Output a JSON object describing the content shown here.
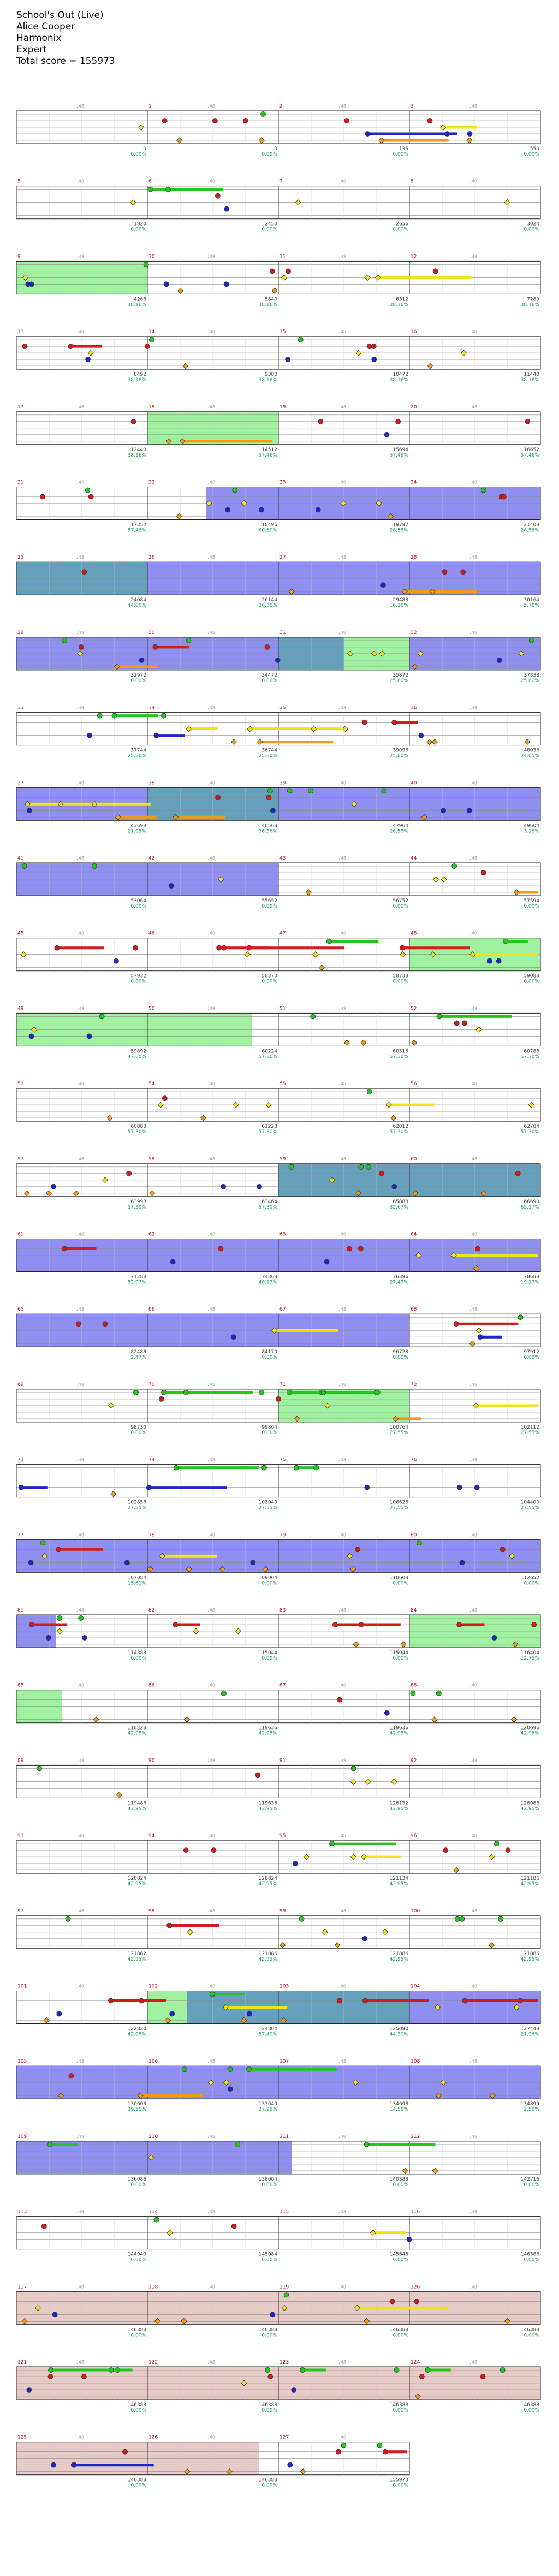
{
  "header": {
    "song": "School's Out (Live)",
    "artist": "Alice Cooper",
    "charter": "Harmonix",
    "difficulty": "Expert",
    "total_score": "Total score = 155973"
  },
  "colors": {
    "green": "#22c61f",
    "red": "#d31b1b",
    "yellow": "#f1e31a",
    "blue": "#1c26c9",
    "orange": "#f39a10",
    "overdrive_fill": "#7b7bf0",
    "solo_fill": "#8ff08f",
    "overlap_fill": "#4a8fb0",
    "coda_fill": "#e2c2bd",
    "score_color": "#1aa35a",
    "measure_color": "#c0101a"
  },
  "rows": [
    {
      "m": [
        null,
        1,
        2,
        3
      ],
      "s": [
        "0",
        "0",
        "136",
        "550"
      ],
      "p": [
        "0.00%",
        "0.00%",
        "0.00%",
        "0.00%"
      ]
    },
    {
      "m": [
        5,
        6,
        7,
        8
      ],
      "s": [
        "1820",
        "2450",
        "2656",
        "3024"
      ],
      "p": [
        "0.00%",
        "0.00%",
        "0.00%",
        "0.00%"
      ]
    },
    {
      "m": [
        9,
        10,
        11,
        12
      ],
      "s": [
        "4268",
        "5840",
        "6312",
        "7280"
      ],
      "p": [
        "38.16%",
        "38.16%",
        "38.16%",
        "38.16%"
      ]
    },
    {
      "m": [
        13,
        14,
        15,
        16
      ],
      "s": [
        "8492",
        "9380",
        "10472",
        "11440"
      ],
      "p": [
        "38.16%",
        "38.16%",
        "38.16%",
        "38.16%"
      ]
    },
    {
      "m": [
        17,
        18,
        19,
        20
      ],
      "s": [
        "12440",
        "14512",
        "15694",
        "16652"
      ],
      "p": [
        "38.16%",
        "57.46%",
        "57.46%",
        "57.46%"
      ]
    },
    {
      "m": [
        21,
        22,
        23,
        24
      ],
      "s": [
        "17352",
        "18496",
        "19792",
        "21408"
      ],
      "p": [
        "57.46%",
        "60.60%",
        "28.58%",
        "28.58%"
      ]
    },
    {
      "m": [
        25,
        26,
        27,
        28
      ],
      "s": [
        "24084",
        "26144",
        "29488",
        "30164"
      ],
      "p": [
        "44.00%",
        "36.36%",
        "16.28%",
        "5.78%"
      ]
    },
    {
      "m": [
        29,
        30,
        31,
        32
      ],
      "s": [
        "32972",
        "34472",
        "35872",
        "37838"
      ],
      "p": [
        "0.00%",
        "0.00%",
        "25.80%",
        "25.80%"
      ]
    },
    {
      "m": [
        33,
        34,
        35,
        36
      ],
      "s": [
        "37744",
        "38744",
        "39096",
        "48036"
      ],
      "p": [
        "25.80%",
        "25.80%",
        "25.80%",
        "24.05%"
      ]
    },
    {
      "m": [
        37,
        38,
        39,
        40
      ],
      "s": [
        "43698",
        "48568",
        "47964",
        "49604"
      ],
      "p": [
        "21.05%",
        "36.36%",
        "26.55%",
        "3.18%"
      ]
    },
    {
      "m": [
        41,
        42,
        43,
        44
      ],
      "s": [
        "53064",
        "55652",
        "56752",
        "57594"
      ],
      "p": [
        "0.00%",
        "0.00%",
        "0.00%",
        "0.00%"
      ]
    },
    {
      "m": [
        45,
        46,
        47,
        48
      ],
      "s": [
        "57932",
        "58370",
        "58738",
        "59088"
      ],
      "p": [
        "0.00%",
        "0.00%",
        "0.00%",
        "0.00%"
      ]
    },
    {
      "m": [
        49,
        50,
        51,
        52
      ],
      "s": [
        "59892",
        "60224",
        "60516",
        "60788"
      ],
      "p": [
        "47.00%",
        "57.30%",
        "57.30%",
        "57.30%"
      ]
    },
    {
      "m": [
        53,
        54,
        55,
        56
      ],
      "s": [
        "60888",
        "61228",
        "62012",
        "62784"
      ],
      "p": [
        "57.30%",
        "57.30%",
        "57.30%",
        "57.30%"
      ]
    },
    {
      "m": [
        57,
        58,
        59,
        60
      ],
      "s": [
        "63998",
        "63464",
        "65888",
        "66690"
      ],
      "p": [
        "57.30%",
        "57.30%",
        "32.67%",
        "65.17%"
      ]
    },
    {
      "m": [
        61,
        62,
        63,
        64
      ],
      "s": [
        "71288",
        "74368",
        "76396",
        "78688"
      ],
      "p": [
        "52.97%",
        "48.17%",
        "27.43%",
        "19.17%"
      ]
    },
    {
      "m": [
        65,
        66,
        67,
        68
      ],
      "s": [
        "82488",
        "84170",
        "96728",
        "97912"
      ],
      "p": [
        "2.47%",
        "0.00%",
        "0.00%",
        "0.00%"
      ]
    },
    {
      "m": [
        69,
        70,
        71,
        72
      ],
      "s": [
        "98730",
        "99864",
        "100764",
        "102112"
      ],
      "p": [
        "0.00%",
        "0.00%",
        "27.55%",
        "27.55%"
      ]
    },
    {
      "m": [
        73,
        74,
        75,
        76
      ],
      "s": [
        "102856",
        "103040",
        "106628",
        "104400"
      ],
      "p": [
        "27.55%",
        "27.55%",
        "27.55%",
        "27.55%"
      ]
    },
    {
      "m": [
        77,
        78,
        79,
        80
      ],
      "s": [
        "107084",
        "109004",
        "110608",
        "112652"
      ],
      "p": [
        "15.61%",
        "0.00%",
        "0.00%",
        "0.00%"
      ]
    },
    {
      "m": [
        81,
        82,
        83,
        84
      ],
      "s": [
        "114388",
        "115044",
        "115044",
        "116404"
      ],
      "p": [
        "0.00%",
        "0.00%",
        "0.00%",
        "12.75%"
      ]
    },
    {
      "m": [
        85,
        86,
        87,
        88
      ],
      "s": [
        "118228",
        "119636",
        "119636",
        "120696"
      ],
      "p": [
        "42.95%",
        "42.95%",
        "42.95%",
        "42.95%"
      ]
    },
    {
      "m": [
        89,
        90,
        91,
        92
      ],
      "s": [
        "119486",
        "119636",
        "128132",
        "128086"
      ],
      "p": [
        "42.95%",
        "42.95%",
        "42.95%",
        "42.95%"
      ]
    },
    {
      "m": [
        93,
        94,
        95,
        96
      ],
      "s": [
        "128824",
        "128824",
        "121134",
        "121186"
      ],
      "p": [
        "42.95%",
        "42.95%",
        "42.95%",
        "42.95%"
      ]
    },
    {
      "m": [
        97,
        98,
        99,
        100
      ],
      "s": [
        "121882",
        "121886",
        "121886",
        "121886"
      ],
      "p": [
        "42.95%",
        "42.95%",
        "42.95%",
        "42.95%"
      ]
    },
    {
      "m": [
        101,
        102,
        103,
        104
      ],
      "s": [
        "122820",
        "124804",
        "125090",
        "127448"
      ],
      "p": [
        "42.95%",
        "57.40%",
        "44.30%",
        "21.96%"
      ]
    },
    {
      "m": [
        105,
        106,
        107,
        108
      ],
      "s": [
        "130606",
        "133040",
        "134698",
        "134899"
      ],
      "p": [
        "39.55%",
        "27.98%",
        "14.58%",
        "2.58%"
      ]
    },
    {
      "m": [
        109,
        110,
        111,
        112
      ],
      "s": [
        "136086",
        "138004",
        "140388",
        "142716"
      ],
      "p": [
        "0.00%",
        "0.00%",
        "0.00%",
        "0.00%"
      ]
    },
    {
      "m": [
        113,
        114,
        115,
        116
      ],
      "s": [
        "144940",
        "145084",
        "145648",
        "146388"
      ],
      "p": [
        "0.00%",
        "0.00%",
        "0.00%",
        "0.00%"
      ]
    },
    {
      "m": [
        117,
        118,
        119,
        120
      ],
      "s": [
        "146388",
        "146388",
        "146388",
        "146388"
      ],
      "p": [
        "0.00%",
        "0.00%",
        "0.00%",
        "0.00%"
      ]
    },
    {
      "m": [
        121,
        122,
        123,
        124
      ],
      "s": [
        "146388",
        "146388",
        "146388",
        "146388"
      ],
      "p": [
        "0.00%",
        "0.00%",
        "0.00%",
        "0.00%"
      ]
    },
    {
      "m": [
        125,
        126,
        127,
        null
      ],
      "s": [
        "146388",
        "146388",
        "155973",
        ""
      ],
      "p": [
        "0.00%",
        "0.00%",
        "0.00%",
        ""
      ]
    }
  ]
}
